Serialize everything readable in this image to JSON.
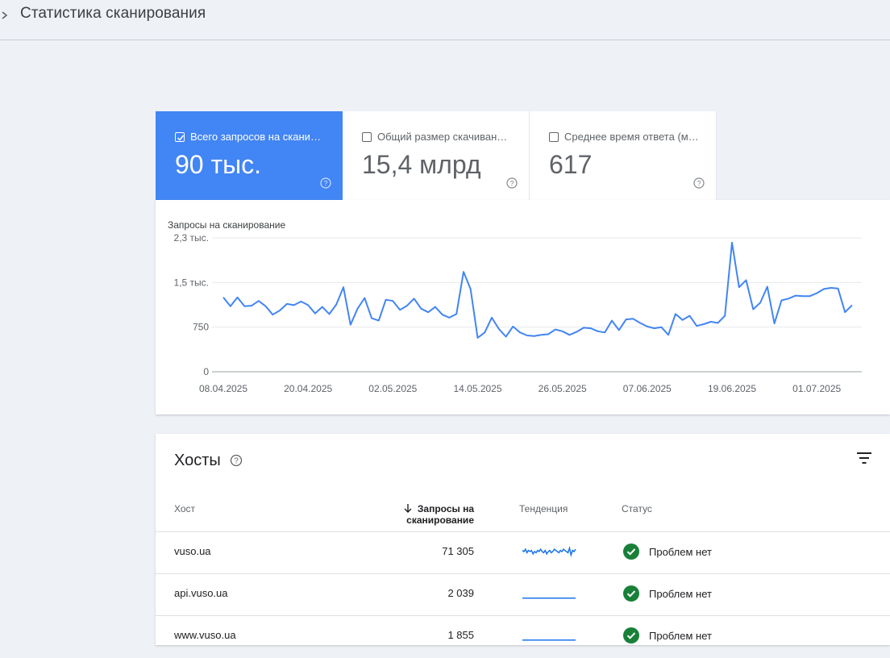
{
  "header": {
    "title": "Статистика сканирования"
  },
  "metrics": [
    {
      "label": "Всего запросов на скани…",
      "value": "90 тыс.",
      "checked": true
    },
    {
      "label": "Общий размер скачиван…",
      "value": "15,4 млрд",
      "checked": false
    },
    {
      "label": "Среднее время ответа (м…",
      "value": "617",
      "checked": false
    }
  ],
  "colors": {
    "accent": "#4285f4",
    "line": "#4285f4",
    "status_ok": "#188038"
  },
  "chart_data": {
    "type": "line",
    "title": "Запросы на сканирование",
    "y_tick_labels": [
      "0",
      "750",
      "1,5 тыс.",
      "2,3 тыс."
    ],
    "y_ticks": [
      0,
      750,
      1500,
      2250
    ],
    "ylim": [
      0,
      2250
    ],
    "x_tick_labels": [
      "08.04.2025",
      "20.04.2025",
      "02.05.2025",
      "14.05.2025",
      "26.05.2025",
      "07.06.2025",
      "19.06.2025",
      "01.07.2025"
    ],
    "x_start": "08.04.2025",
    "grid": true,
    "series": [
      {
        "values": [
          1250,
          1100,
          1250,
          1100,
          1110,
          1190,
          1100,
          960,
          1030,
          1140,
          1120,
          1180,
          1120,
          980,
          1090,
          970,
          1130,
          1420,
          790,
          1060,
          1240,
          900,
          860,
          1210,
          1190,
          1040,
          1110,
          1230,
          1060,
          1000,
          1090,
          960,
          910,
          970,
          1680,
          1390,
          570,
          660,
          910,
          720,
          590,
          760,
          660,
          610,
          600,
          620,
          630,
          710,
          680,
          620,
          670,
          740,
          730,
          680,
          660,
          860,
          700,
          880,
          890,
          820,
          760,
          730,
          750,
          620,
          970,
          870,
          940,
          770,
          800,
          840,
          820,
          940,
          2170,
          1420,
          1540,
          1050,
          1160,
          1430,
          810,
          1200,
          1230,
          1280,
          1270,
          1270,
          1320,
          1390,
          1410,
          1400,
          1000,
          1120
        ]
      }
    ]
  },
  "hosts": {
    "title": "Хосты",
    "columns": {
      "host": "Хост",
      "requests": "Запросы на сканирование",
      "trend": "Тенденция",
      "status": "Статус"
    },
    "rows": [
      {
        "host": "vuso.ua",
        "requests": "71 305",
        "status": "Проблем нет",
        "trend": [
          8,
          7,
          9,
          6,
          8,
          7,
          8,
          5,
          7,
          6,
          8,
          7,
          9,
          7,
          6,
          8,
          5,
          7,
          8,
          6,
          7,
          9,
          8,
          7,
          6,
          8,
          7,
          9,
          8,
          7,
          6,
          10,
          4,
          8,
          7,
          9
        ]
      },
      {
        "host": "api.vuso.ua",
        "requests": "2 039",
        "status": "Проблем нет",
        "trend": [
          3,
          3,
          3,
          3,
          3,
          3,
          3,
          3,
          3,
          3,
          3,
          3,
          3,
          3,
          3,
          3,
          3,
          3,
          3,
          3
        ]
      },
      {
        "host": "www.vuso.ua",
        "requests": "1 855",
        "status": "Проблем нет",
        "trend": [
          3,
          3,
          3,
          3,
          3,
          3,
          3,
          3,
          3,
          3,
          3,
          3,
          3,
          3,
          3,
          3,
          3,
          3,
          3,
          3
        ]
      }
    ]
  }
}
